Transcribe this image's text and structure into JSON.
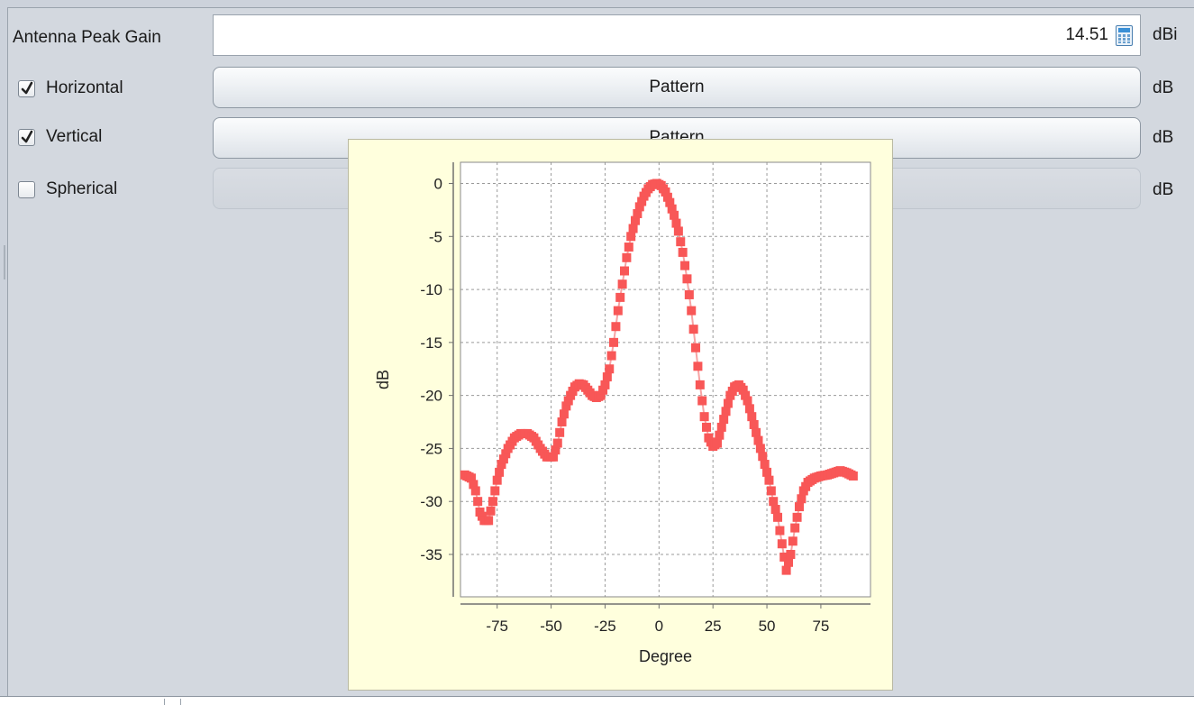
{
  "gain": {
    "label": "Antenna Peak Gain",
    "value": "14.51",
    "unit": "dBi",
    "calculator_icon": "calculator-icon"
  },
  "rows": [
    {
      "label": "Horizontal",
      "checked": true,
      "button_label": "Pattern",
      "unit": "dB",
      "enabled": true
    },
    {
      "label": "Vertical",
      "checked": true,
      "button_label": "Pattern",
      "unit": "dB",
      "enabled": true
    },
    {
      "label": "Spherical",
      "checked": false,
      "button_label": "",
      "unit": "dB",
      "enabled": false
    }
  ],
  "chart_data": {
    "type": "scatter",
    "xlabel": "Degree",
    "ylabel": "dB",
    "xlim": [
      -92,
      98
    ],
    "ylim": [
      -39,
      2
    ],
    "xticks": [
      -75,
      -50,
      -25,
      0,
      25,
      50,
      75
    ],
    "yticks": [
      0,
      -5,
      -10,
      -15,
      -20,
      -25,
      -30,
      -35
    ],
    "grid": true,
    "marker_color": "#f85757",
    "line_color": "#f7a3a3",
    "anchors": [
      [
        -90,
        -27.5
      ],
      [
        -87,
        -27.8
      ],
      [
        -85,
        -29
      ],
      [
        -83,
        -31
      ],
      [
        -81,
        -31.8
      ],
      [
        -79,
        -31.8
      ],
      [
        -77,
        -30
      ],
      [
        -75,
        -28
      ],
      [
        -73,
        -26.5
      ],
      [
        -70,
        -25
      ],
      [
        -67,
        -24
      ],
      [
        -64,
        -23.6
      ],
      [
        -61,
        -23.6
      ],
      [
        -58,
        -24
      ],
      [
        -55,
        -25
      ],
      [
        -52,
        -25.8
      ],
      [
        -49,
        -25.8
      ],
      [
        -47,
        -24.5
      ],
      [
        -45,
        -22.5
      ],
      [
        -43,
        -21
      ],
      [
        -41,
        -20
      ],
      [
        -39,
        -19.2
      ],
      [
        -37,
        -18.9
      ],
      [
        -35,
        -19
      ],
      [
        -33,
        -19.5
      ],
      [
        -31,
        -20
      ],
      [
        -29,
        -20.2
      ],
      [
        -27,
        -20
      ],
      [
        -25,
        -19
      ],
      [
        -23,
        -17.5
      ],
      [
        -21,
        -15
      ],
      [
        -19,
        -12
      ],
      [
        -17,
        -9.5
      ],
      [
        -15,
        -7
      ],
      [
        -13,
        -5
      ],
      [
        -11,
        -3.5
      ],
      [
        -9,
        -2.2
      ],
      [
        -7,
        -1.2
      ],
      [
        -5,
        -0.5
      ],
      [
        -3,
        -0.1
      ],
      [
        -1,
        0
      ],
      [
        1,
        -0.2
      ],
      [
        3,
        -0.8
      ],
      [
        5,
        -1.8
      ],
      [
        7,
        -3
      ],
      [
        9,
        -4.5
      ],
      [
        11,
        -6.5
      ],
      [
        13,
        -9
      ],
      [
        15,
        -12
      ],
      [
        17,
        -15.5
      ],
      [
        19,
        -19
      ],
      [
        21,
        -22
      ],
      [
        23,
        -24
      ],
      [
        25,
        -24.8
      ],
      [
        27,
        -24.5
      ],
      [
        29,
        -23
      ],
      [
        31,
        -21.5
      ],
      [
        33,
        -20
      ],
      [
        35,
        -19.2
      ],
      [
        37,
        -19
      ],
      [
        39,
        -19.5
      ],
      [
        41,
        -20.5
      ],
      [
        43,
        -22
      ],
      [
        45,
        -23.5
      ],
      [
        47,
        -25
      ],
      [
        49,
        -26.5
      ],
      [
        51,
        -28
      ],
      [
        53,
        -30
      ],
      [
        55,
        -31.5
      ],
      [
        57,
        -34
      ],
      [
        59,
        -36.5
      ],
      [
        61,
        -35
      ],
      [
        63,
        -32.5
      ],
      [
        65,
        -30.5
      ],
      [
        67,
        -29
      ],
      [
        69,
        -28.2
      ],
      [
        72,
        -27.8
      ],
      [
        75,
        -27.6
      ],
      [
        78,
        -27.5
      ],
      [
        81,
        -27.3
      ],
      [
        84,
        -27.1
      ],
      [
        87,
        -27.3
      ],
      [
        90,
        -27.6
      ]
    ]
  }
}
